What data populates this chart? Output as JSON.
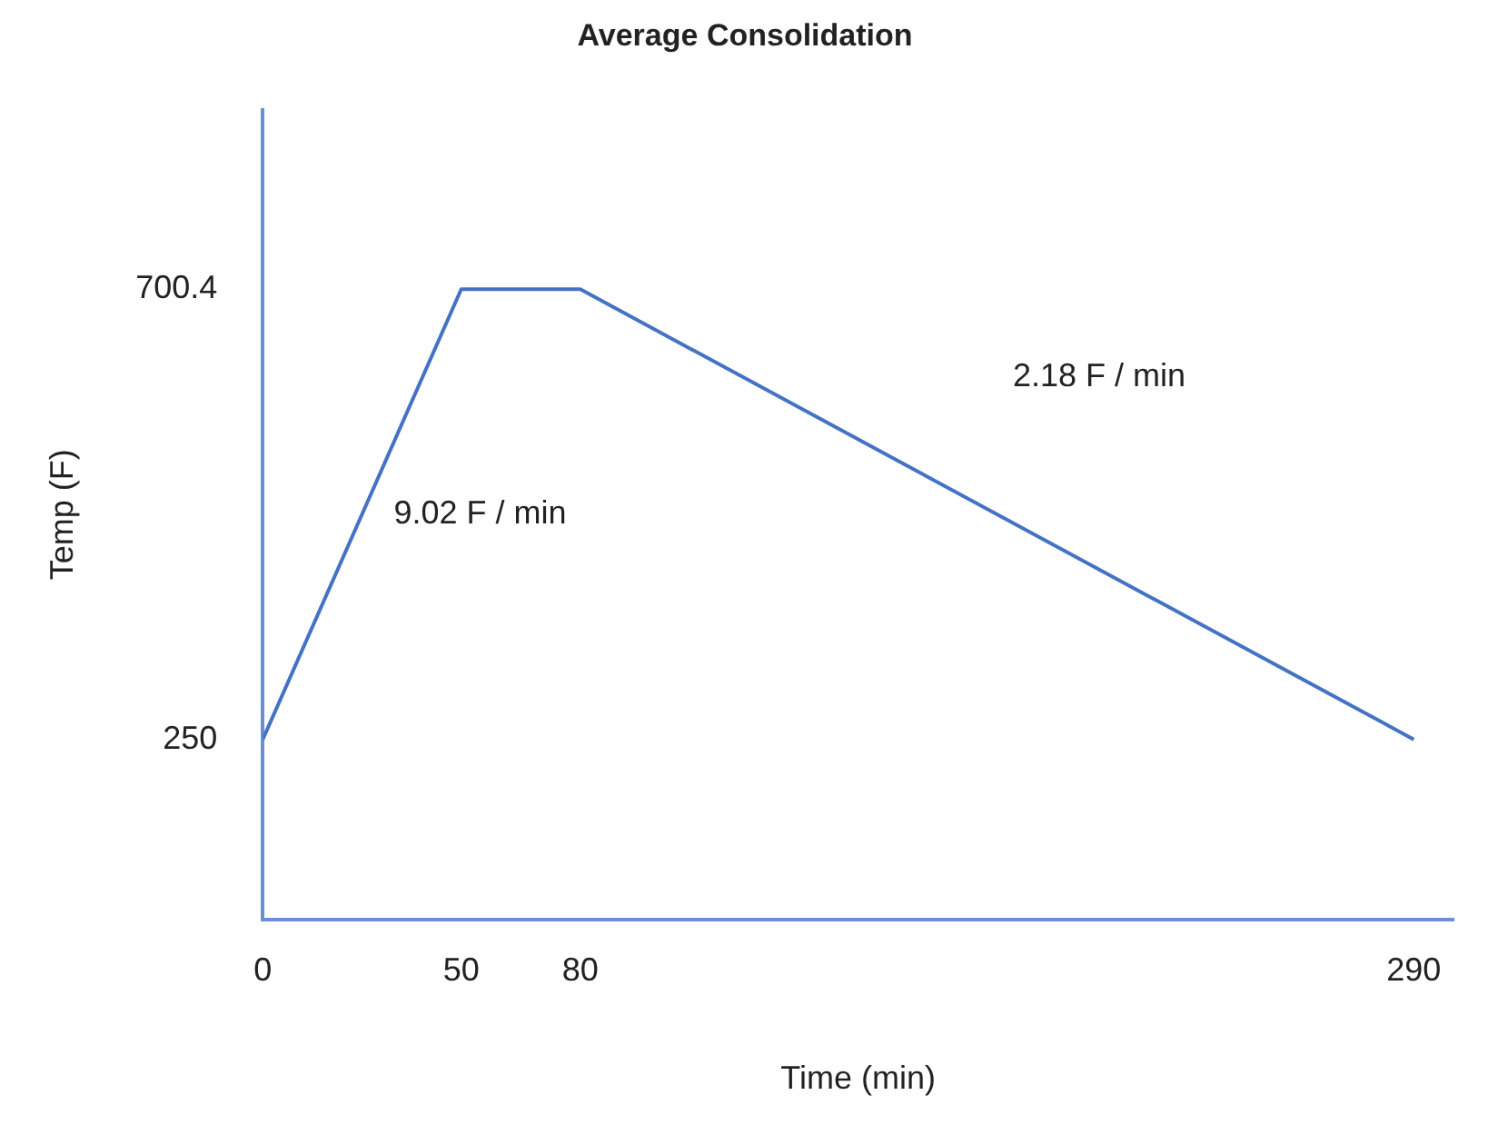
{
  "chart_data": {
    "type": "line",
    "title": "Average Consolidation",
    "xlabel": "Time (min)",
    "ylabel": "Temp (F)",
    "x": [
      0,
      50,
      80,
      290
    ],
    "series": [
      {
        "color": "#4472c4",
        "values": [
          250,
          700.4,
          700.4,
          250
        ]
      }
    ],
    "xlim": [
      0,
      300
    ],
    "xticks": [
      0,
      50,
      80,
      290
    ],
    "ylim": [
      70,
      880
    ],
    "yticks": [
      250,
      700.4
    ],
    "grid": false,
    "legend": false,
    "marker": "none",
    "line_style": "solid",
    "annotations": [
      "9.02 F / min",
      "2.18 F / min"
    ]
  }
}
